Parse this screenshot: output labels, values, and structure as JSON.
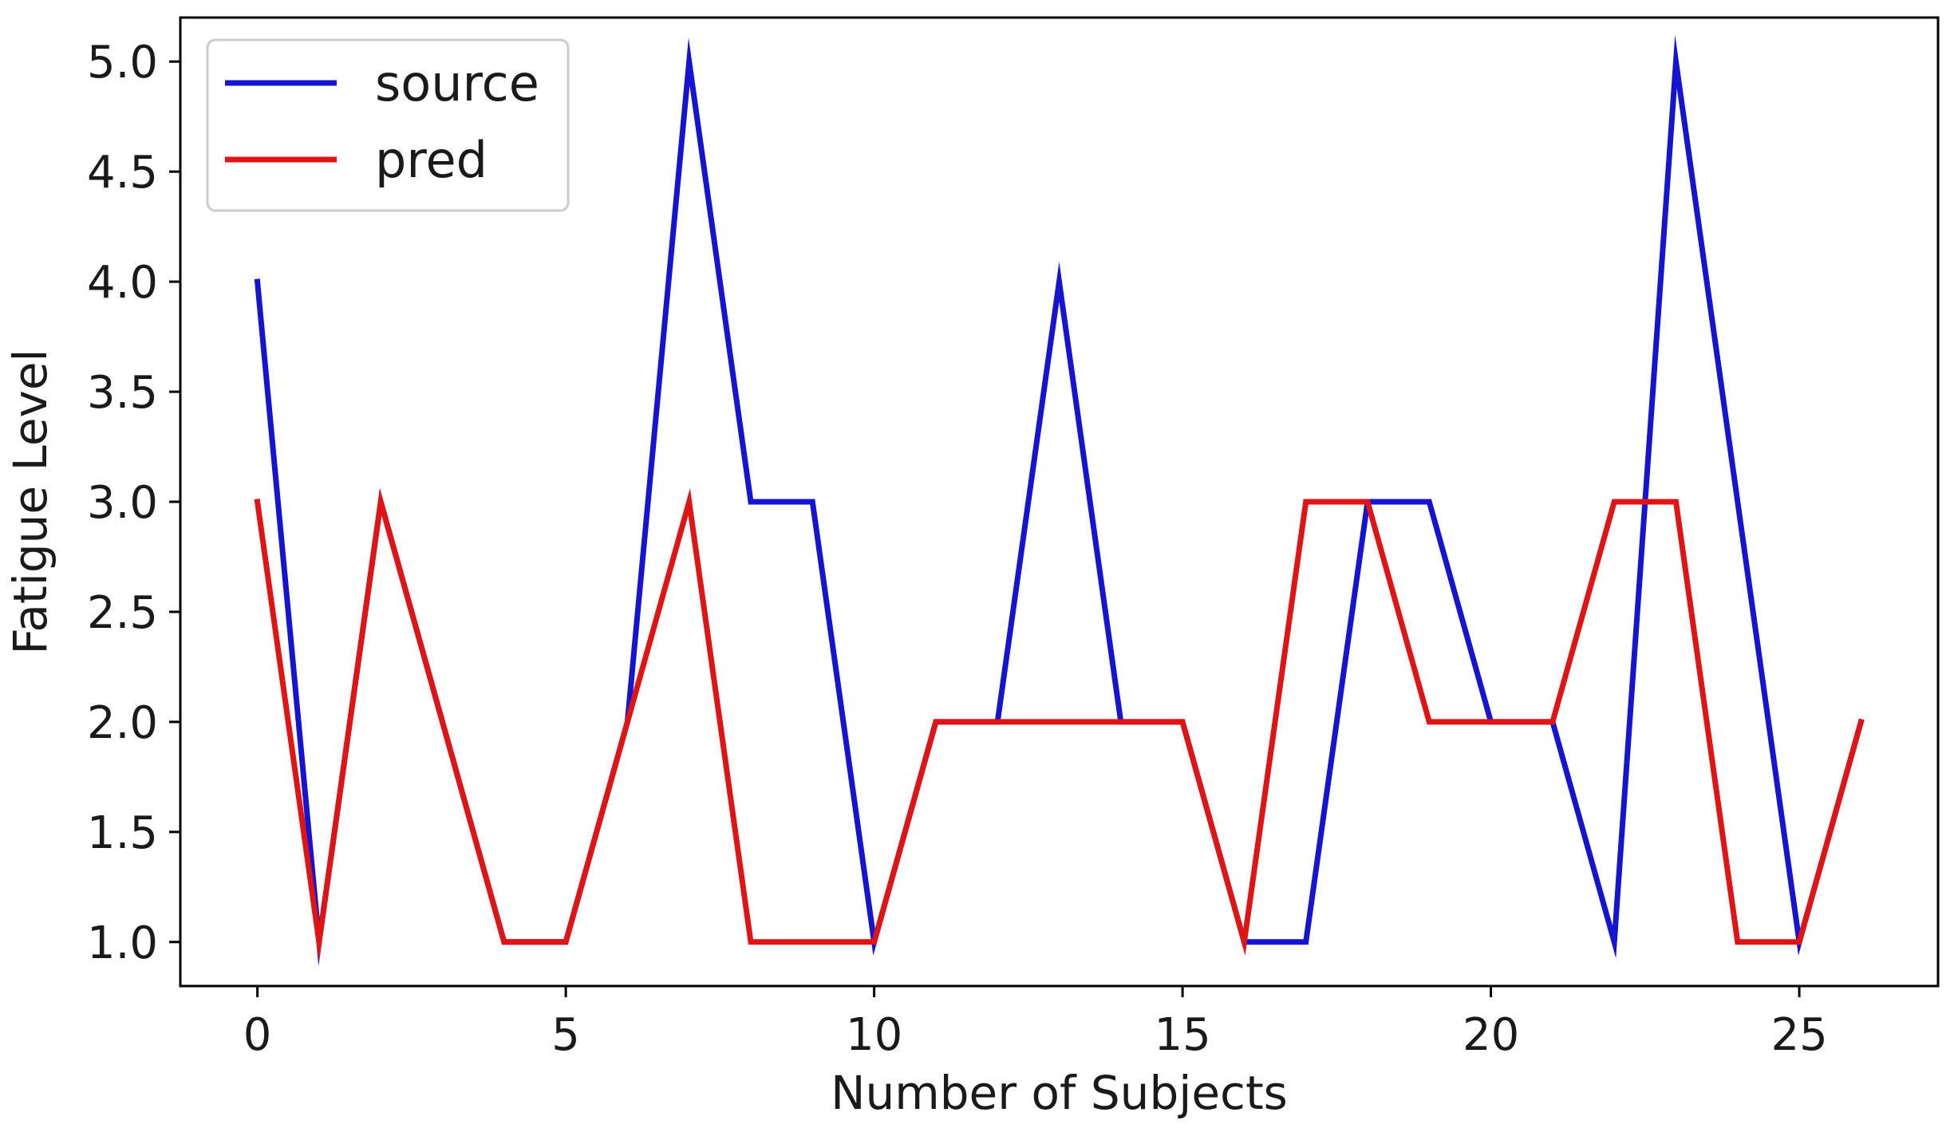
{
  "chart_data": {
    "type": "line",
    "title": "",
    "xlabel": "Number of Subjects",
    "ylabel": "Fatigue Level",
    "xlim": [
      -1.25,
      27.25
    ],
    "ylim": [
      0.8,
      5.2
    ],
    "xticks": [
      0,
      5,
      10,
      15,
      20,
      25
    ],
    "xtick_labels": [
      "0",
      "5",
      "10",
      "15",
      "20",
      "25"
    ],
    "yticks": [
      1.0,
      1.5,
      2.0,
      2.5,
      3.0,
      3.5,
      4.0,
      4.5,
      5.0
    ],
    "ytick_labels": [
      "1.0",
      "1.5",
      "2.0",
      "2.5",
      "3.0",
      "3.5",
      "4.0",
      "4.5",
      "5.0"
    ],
    "grid": false,
    "legend_position": "top-left",
    "x": [
      0,
      1,
      2,
      3,
      4,
      5,
      6,
      7,
      8,
      9,
      10,
      11,
      12,
      13,
      14,
      15,
      16,
      17,
      18,
      19,
      20,
      21,
      22,
      23,
      24,
      25,
      26
    ],
    "series": [
      {
        "name": "source",
        "color": "#1414d2",
        "values": [
          4,
          1,
          3,
          2,
          1,
          1,
          2,
          5,
          3,
          3,
          1,
          2,
          2,
          4,
          2,
          2,
          1,
          1,
          3,
          3,
          2,
          2,
          1,
          5,
          3,
          1,
          2
        ]
      },
      {
        "name": "pred",
        "color": "#e01414",
        "values": [
          3,
          1,
          3,
          2,
          1,
          1,
          2,
          3,
          1,
          1,
          1,
          2,
          2,
          2,
          2,
          2,
          1,
          3,
          3,
          2,
          2,
          2,
          3,
          3,
          1,
          1,
          2
        ]
      }
    ]
  }
}
